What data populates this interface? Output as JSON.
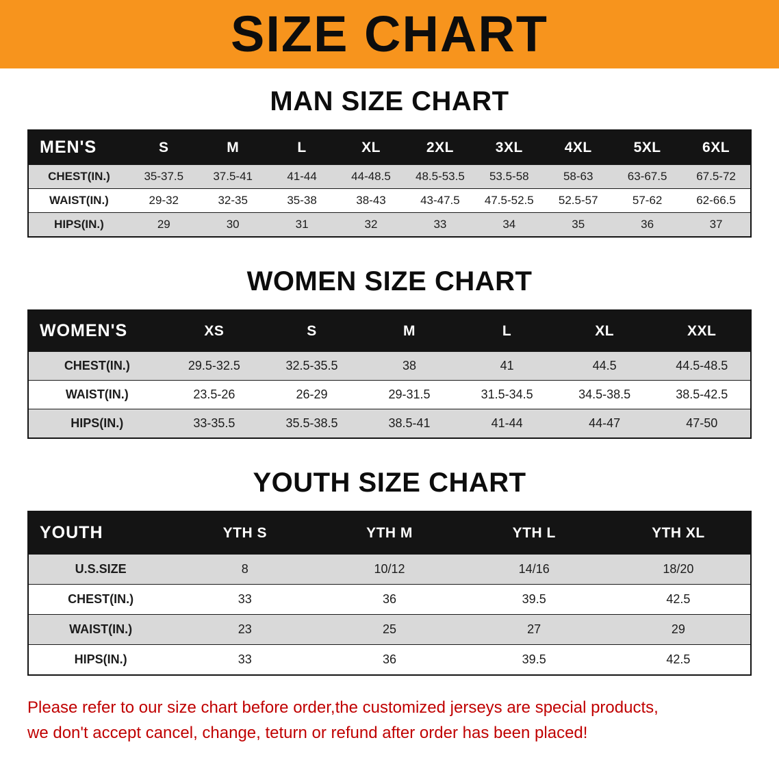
{
  "banner": {
    "title": "SIZE CHART",
    "bg_color": "#F7941D"
  },
  "sections": [
    {
      "heading": "MAN SIZE CHART",
      "table": {
        "header": [
          "MEN'S",
          "S",
          "M",
          "L",
          "XL",
          "2XL",
          "3XL",
          "4XL",
          "5XL",
          "6XL"
        ],
        "rows": [
          {
            "label": "CHEST(IN.)",
            "values": [
              "35-37.5",
              "37.5-41",
              "41-44",
              "44-48.5",
              "48.5-53.5",
              "53.5-58",
              "58-63",
              "63-67.5",
              "67.5-72"
            ]
          },
          {
            "label": "WAIST(IN.)",
            "values": [
              "29-32",
              "32-35",
              "35-38",
              "38-43",
              "43-47.5",
              "47.5-52.5",
              "52.5-57",
              "57-62",
              "62-66.5"
            ]
          },
          {
            "label": "HIPS(IN.)",
            "values": [
              "29",
              "30",
              "31",
              "32",
              "33",
              "34",
              "35",
              "36",
              "37"
            ]
          }
        ]
      }
    },
    {
      "heading": "WOMEN SIZE CHART",
      "table": {
        "header": [
          "WOMEN'S",
          "XS",
          "S",
          "M",
          "L",
          "XL",
          "XXL"
        ],
        "rows": [
          {
            "label": "CHEST(IN.)",
            "values": [
              "29.5-32.5",
              "32.5-35.5",
              "38",
              "41",
              "44.5",
              "44.5-48.5"
            ]
          },
          {
            "label": "WAIST(IN.)",
            "values": [
              "23.5-26",
              "26-29",
              "29-31.5",
              "31.5-34.5",
              "34.5-38.5",
              "38.5-42.5"
            ]
          },
          {
            "label": "HIPS(IN.)",
            "values": [
              "33-35.5",
              "35.5-38.5",
              "38.5-41",
              "41-44",
              "44-47",
              "47-50"
            ]
          }
        ]
      }
    },
    {
      "heading": "YOUTH SIZE CHART",
      "table": {
        "header": [
          "YOUTH",
          "YTH S",
          "YTH M",
          "YTH L",
          "YTH XL"
        ],
        "rows": [
          {
            "label": "U.S.SIZE",
            "values": [
              "8",
              "10/12",
              "14/16",
              "18/20"
            ]
          },
          {
            "label": "CHEST(IN.)",
            "values": [
              "33",
              "36",
              "39.5",
              "42.5"
            ]
          },
          {
            "label": "WAIST(IN.)",
            "values": [
              "23",
              "25",
              "27",
              "29"
            ]
          },
          {
            "label": "HIPS(IN.)",
            "values": [
              "33",
              "36",
              "39.5",
              "42.5"
            ]
          }
        ]
      }
    }
  ],
  "disclaimer": {
    "color": "#C00000",
    "lines": [
      "Please refer to our size chart before order,the customized jerseys are special products,",
      "we don't accept cancel, change, teturn or refund after order has been placed!"
    ]
  }
}
